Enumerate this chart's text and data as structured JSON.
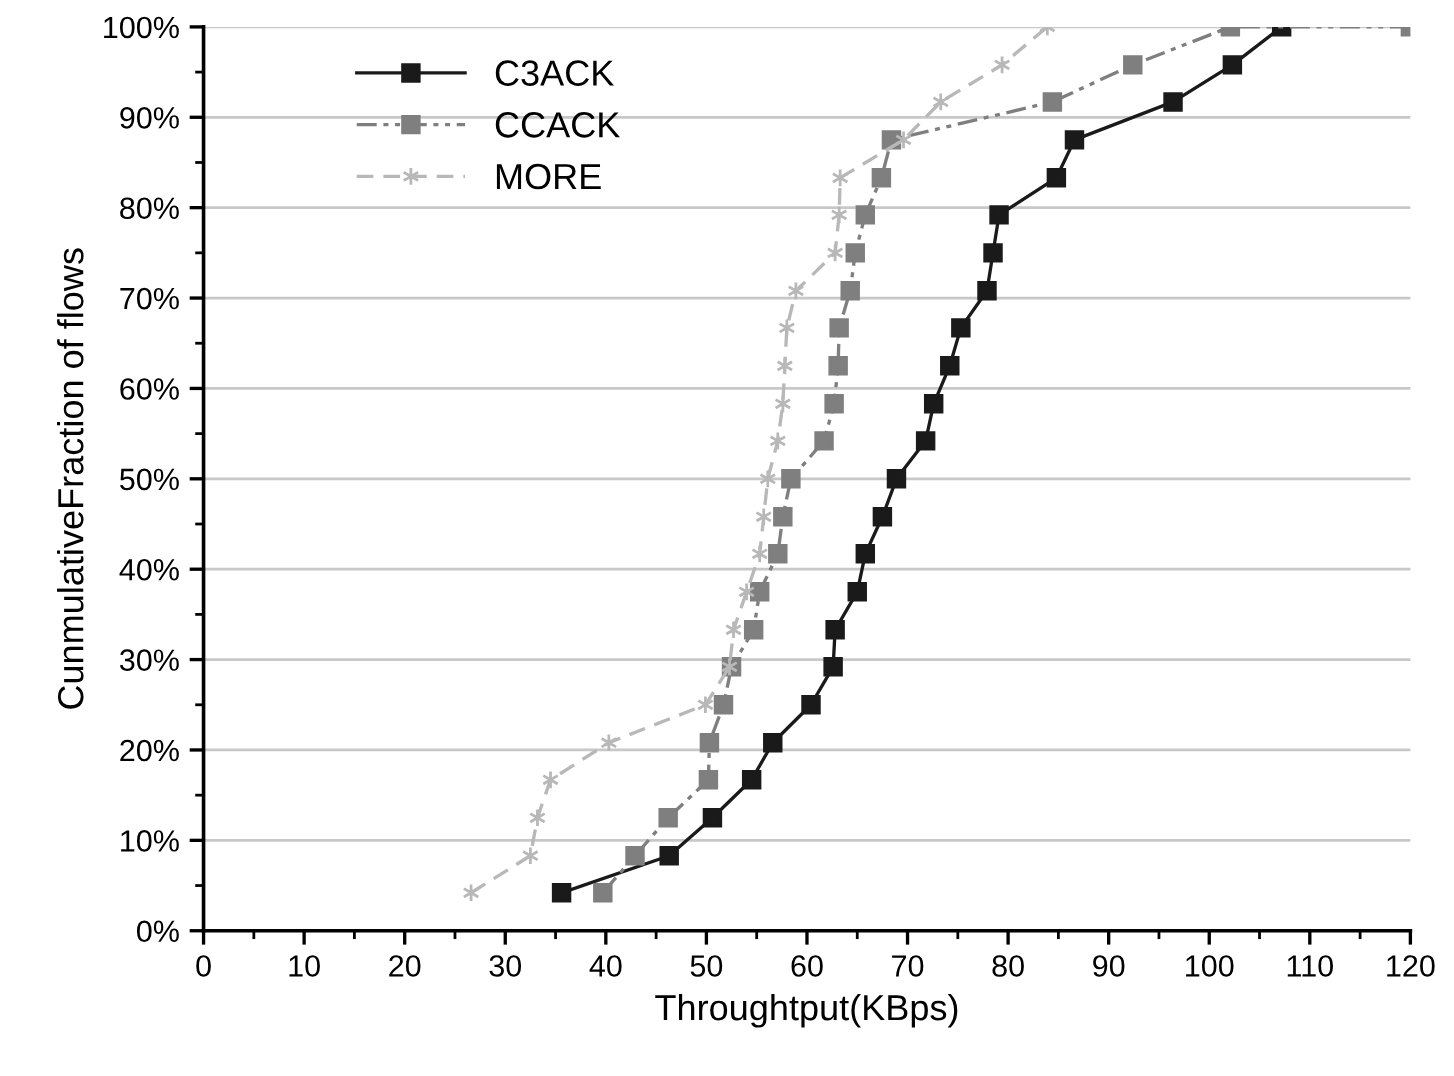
{
  "chart_data": {
    "type": "line",
    "xlabel": "Throughtput(KBps)",
    "ylabel": "CunmulativeFraction of flows",
    "xlim": [
      0,
      120
    ],
    "xticks": [
      0,
      10,
      20,
      30,
      40,
      50,
      60,
      70,
      80,
      90,
      100,
      110,
      120
    ],
    "ylim": [
      0,
      100
    ],
    "yticks": [
      {
        "value": 0,
        "label": "0%"
      },
      {
        "value": 10,
        "label": "10%"
      },
      {
        "value": 20,
        "label": "20%"
      },
      {
        "value": 30,
        "label": "30%"
      },
      {
        "value": 40,
        "label": "40%"
      },
      {
        "value": 50,
        "label": "50%"
      },
      {
        "value": 60,
        "label": "60%"
      },
      {
        "value": 70,
        "label": "70%"
      },
      {
        "value": 80,
        "label": "80%"
      },
      {
        "value": 90,
        "label": "90%"
      },
      {
        "value": 100,
        "label": "100%"
      }
    ],
    "grid": "y",
    "legend": "top left",
    "series": [
      {
        "name": "C3ACK",
        "color": "#1a1a1a",
        "marker": "square",
        "line_style": "solid",
        "x": [
          35.6,
          46.3,
          50.6,
          54.5,
          56.6,
          60.4,
          62.6,
          62.8,
          65.0,
          65.8,
          67.5,
          68.9,
          71.8,
          72.6,
          74.2,
          75.3,
          77.9,
          78.5,
          79.1,
          84.8,
          86.6,
          96.4,
          102.3,
          107.2
        ],
        "values": [
          4.2,
          8.3,
          12.5,
          16.7,
          20.8,
          25,
          29.2,
          33.3,
          37.5,
          41.7,
          45.8,
          50,
          54.2,
          58.3,
          62.5,
          66.7,
          70.8,
          75,
          79.2,
          83.3,
          87.5,
          91.7,
          95.8,
          100
        ]
      },
      {
        "name": "CCACK",
        "color": "#7f7f7f",
        "marker": "square",
        "line_style": "dashdot",
        "x": [
          39.7,
          42.9,
          46.2,
          50.2,
          50.3,
          51.7,
          52.5,
          54.7,
          55.3,
          57.1,
          57.6,
          58.4,
          61.7,
          62.7,
          63.1,
          63.2,
          64.3,
          64.8,
          65.8,
          67.4,
          68.4,
          84.4,
          92.4,
          102.1,
          120
        ],
        "values": [
          4.2,
          8.3,
          12.5,
          16.7,
          20.8,
          25,
          29.2,
          33.3,
          37.5,
          41.7,
          45.8,
          50,
          54.2,
          58.3,
          62.5,
          66.7,
          70.8,
          75,
          79.2,
          83.3,
          87.5,
          91.7,
          95.8,
          100,
          100
        ]
      },
      {
        "name": "MORE",
        "color": "#b8b8b8",
        "marker": "cross",
        "line_style": "dashed",
        "x": [
          26.6,
          32.5,
          33.2,
          34.5,
          40.3,
          49.9,
          52.3,
          52.7,
          54.0,
          55.3,
          55.7,
          56.1,
          57.1,
          57.6,
          57.8,
          58.0,
          58.9,
          62.8,
          63.2,
          63.3,
          69.6,
          73.3,
          79.4,
          83.9
        ],
        "values": [
          4.2,
          8.3,
          12.5,
          16.7,
          20.8,
          25,
          29.2,
          33.3,
          37.5,
          41.7,
          45.8,
          50,
          54.2,
          58.3,
          62.5,
          66.7,
          70.8,
          75,
          79.2,
          83.3,
          87.5,
          91.7,
          95.8,
          100
        ]
      }
    ]
  }
}
